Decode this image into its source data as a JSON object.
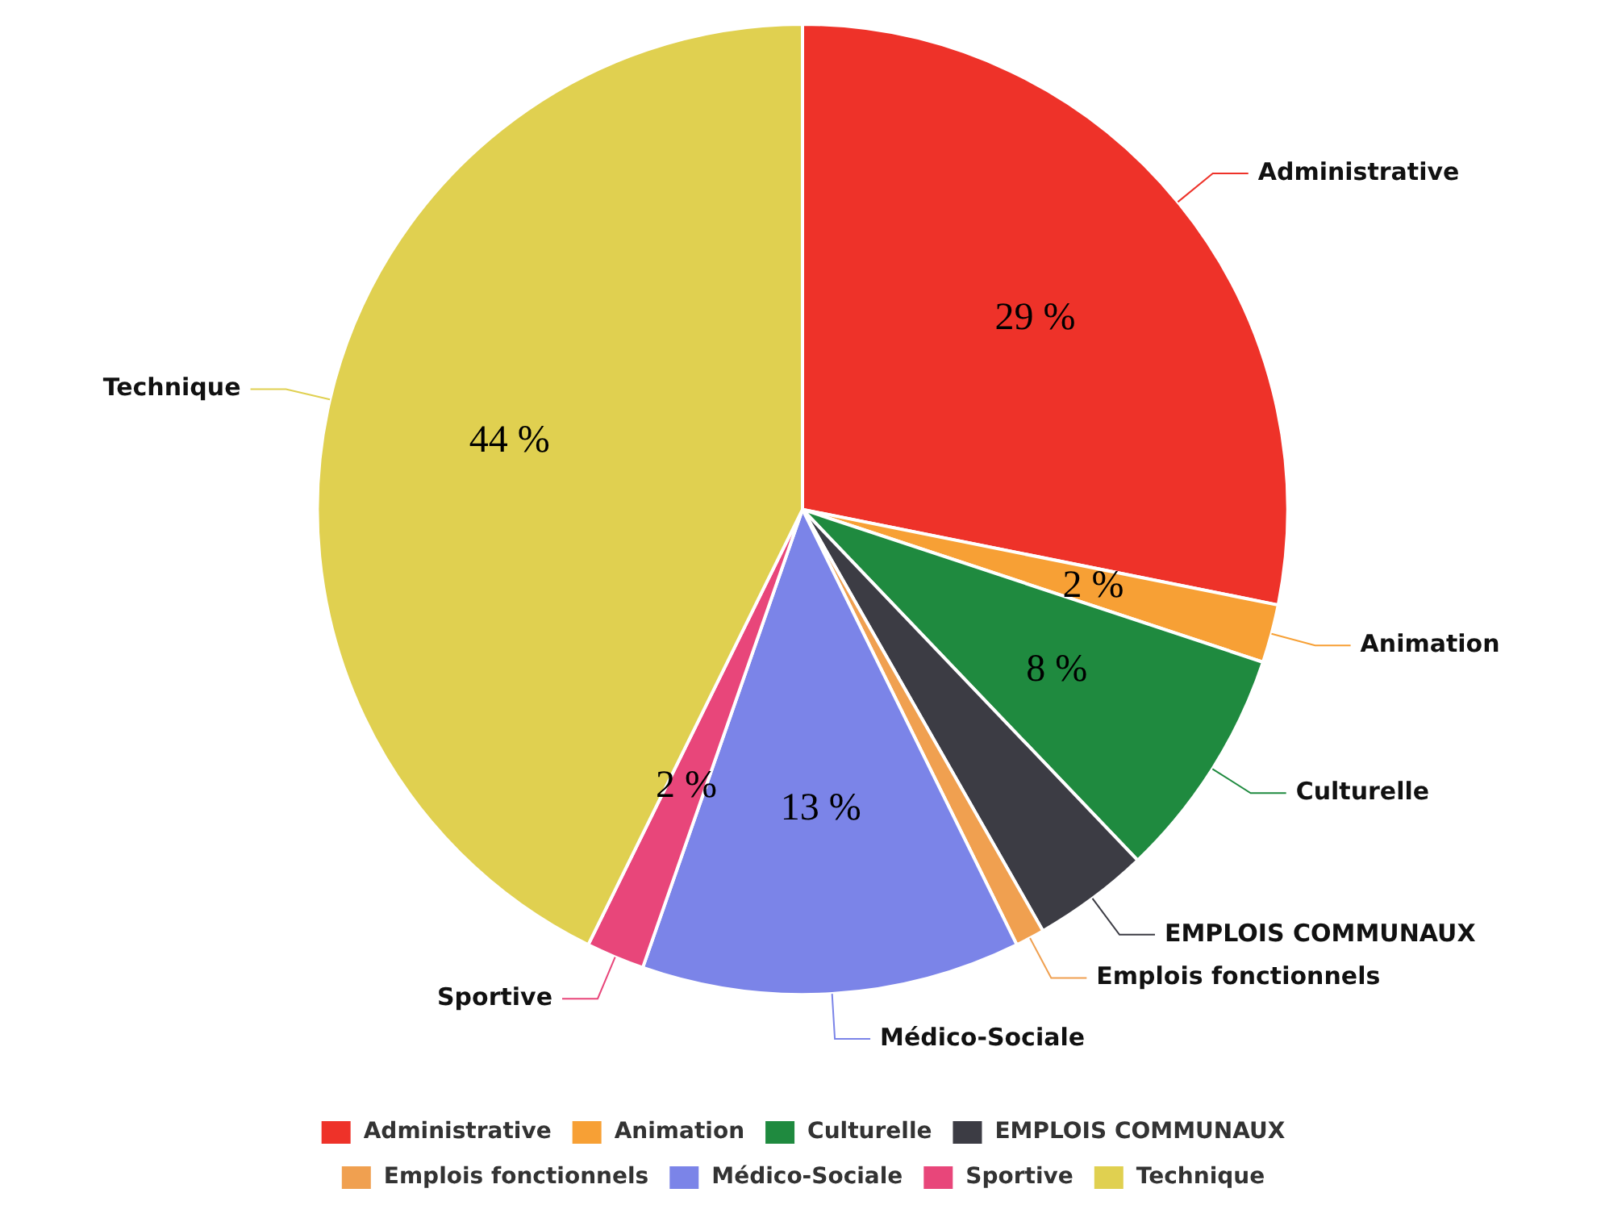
{
  "chart_data": {
    "type": "pie",
    "categories": [
      "Administrative",
      "Animation",
      "Culturelle",
      "EMPLOIS COMMUNAUX",
      "Emplois fonctionnels",
      "Médico-Sociale",
      "Sportive",
      "Technique"
    ],
    "values": [
      29,
      2,
      8,
      4,
      1,
      13,
      2,
      44
    ],
    "colors": [
      "#ee3229",
      "#f7a035",
      "#1f8a3f",
      "#3c3c44",
      "#f0a050",
      "#7b84e8",
      "#e8467a",
      "#e0d050"
    ],
    "value_labels": [
      "29 %",
      "2 %",
      "8 %",
      null,
      null,
      "13 %",
      "2 %",
      "44 %"
    ],
    "legend": "bottom"
  }
}
